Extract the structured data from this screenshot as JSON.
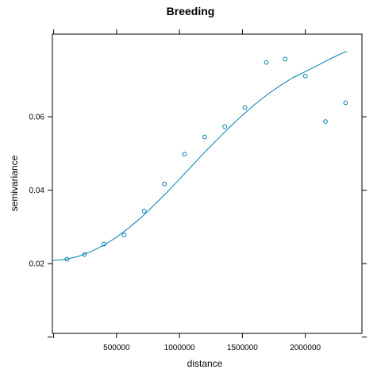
{
  "chart_data": {
    "type": "scatter",
    "title": "Breeding",
    "xlabel": "distance",
    "ylabel": "semivariance",
    "xlim": [
      -10000,
      2450000
    ],
    "ylim": [
      0.001,
      0.0825
    ],
    "xticks": [
      0,
      500000,
      1000000,
      1500000,
      2000000
    ],
    "xtick_labels": [
      "",
      "500000",
      "1000000",
      "1500000",
      "2000000"
    ],
    "yticks": [
      0.0,
      0.02,
      0.04,
      0.06
    ],
    "ytick_labels": [
      "",
      "0.02",
      "0.04",
      "0.06"
    ],
    "grid": false,
    "color": "#0080b0",
    "series": [
      {
        "type": "scatter",
        "x": [
          105000,
          245000,
          400000,
          560000,
          720000,
          880000,
          1040000,
          1200000,
          1360000,
          1520000,
          1690000,
          1840000,
          2000000,
          2160000,
          2320000
        ],
        "y": [
          0.0212,
          0.0225,
          0.0253,
          0.0278,
          0.0343,
          0.0417,
          0.0498,
          0.0545,
          0.0573,
          0.0625,
          0.0748,
          0.0757,
          0.0711,
          0.0587,
          0.0638
        ]
      },
      {
        "type": "line",
        "x": [
          -10000,
          100000,
          200000,
          300000,
          400000,
          500000,
          600000,
          700000,
          800000,
          900000,
          1000000,
          1100000,
          1200000,
          1300000,
          1400000,
          1500000,
          1600000,
          1700000,
          1800000,
          1900000,
          2000000,
          2100000,
          2200000,
          2300000,
          2330000
        ],
        "y": [
          0.0208,
          0.0212,
          0.022,
          0.0233,
          0.025,
          0.0272,
          0.0298,
          0.0327,
          0.036,
          0.0394,
          0.043,
          0.0467,
          0.0503,
          0.0538,
          0.0572,
          0.0604,
          0.0634,
          0.0661,
          0.0685,
          0.0706,
          0.0723,
          0.074,
          0.0758,
          0.0774,
          0.0778
        ]
      }
    ]
  }
}
